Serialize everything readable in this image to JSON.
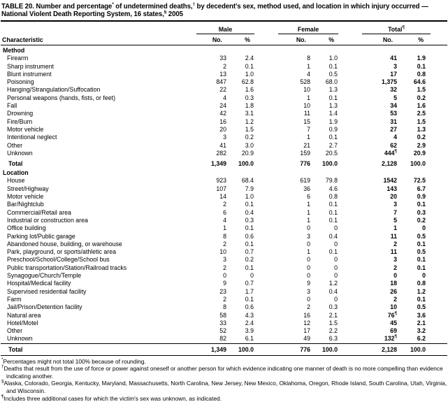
{
  "title_parts": [
    {
      "text": "TABLE 20. Number and percentage"
    },
    {
      "sup": "*"
    },
    {
      "text": " of undetermined deaths,"
    },
    {
      "sup": "†"
    },
    {
      "text": " by decedent's sex, method used, and location in which injury occurred — National Violent Death Reporting System, 16 states,"
    },
    {
      "sup": "§"
    },
    {
      "text": " 2005"
    }
  ],
  "header": {
    "characteristic": "Characteristic",
    "groups": [
      {
        "label": "Male",
        "sup": ""
      },
      {
        "label": "Female",
        "sup": ""
      },
      {
        "label": "Total",
        "sup": "¶"
      }
    ],
    "sub": {
      "no": "No.",
      "pct": "%"
    }
  },
  "sections": [
    {
      "name": "Method",
      "rows": [
        [
          "Firearm",
          "33",
          "2.4",
          "8",
          "1.0",
          "41",
          "1.9"
        ],
        [
          "Sharp instrument",
          "2",
          "0.1",
          "1",
          "0.1",
          "3",
          "0.1"
        ],
        [
          "Blunt instrument",
          "13",
          "1.0",
          "4",
          "0.5",
          "17",
          "0.8"
        ],
        [
          "Poisoning",
          "847",
          "62.8",
          "528",
          "68.0",
          "1,375",
          "64.6"
        ],
        [
          "Hanging/Strangulation/Suffocation",
          "22",
          "1.6",
          "10",
          "1.3",
          "32",
          "1.5"
        ],
        [
          "Personal weapons (hands, fists, or feet)",
          "4",
          "0.3",
          "1",
          "0.1",
          "5",
          "0.2"
        ],
        [
          "Fall",
          "24",
          "1.8",
          "10",
          "1.3",
          "34",
          "1.6"
        ],
        [
          "Drowning",
          "42",
          "3.1",
          "11",
          "1.4",
          "53",
          "2.5"
        ],
        [
          "Fire/Burn",
          "16",
          "1.2",
          "15",
          "1.9",
          "31",
          "1.5"
        ],
        [
          "Motor vehicle",
          "20",
          "1.5",
          "7",
          "0.9",
          "27",
          "1.3"
        ],
        [
          "Intentional neglect",
          "3",
          "0.2",
          "1",
          "0.1",
          "4",
          "0.2"
        ],
        [
          "Other",
          "41",
          "3.0",
          "21",
          "2.7",
          "62",
          "2.9"
        ],
        [
          "Unknown",
          "282",
          "20.9",
          "159",
          "20.5",
          "444¶",
          "20.9"
        ]
      ],
      "total": [
        "Total",
        "1,349",
        "100.0",
        "776",
        "100.0",
        "2,128",
        "100.0"
      ]
    },
    {
      "name": "Location",
      "rows": [
        [
          "House",
          "923",
          "68.4",
          "619",
          "79.8",
          "1542",
          "72.5"
        ],
        [
          "Street/Highway",
          "107",
          "7.9",
          "36",
          "4.6",
          "143",
          "6.7"
        ],
        [
          "Motor vehicle",
          "14",
          "1.0",
          "6",
          "0.8",
          "20",
          "0.9"
        ],
        [
          "Bar/Nightclub",
          "2",
          "0.1",
          "1",
          "0.1",
          "3",
          "0.1"
        ],
        [
          "Commercial/Retail area",
          "6",
          "0.4",
          "1",
          "0.1",
          "7",
          "0.3"
        ],
        [
          "Industrial or construction area",
          "4",
          "0.3",
          "1",
          "0.1",
          "5",
          "0.2"
        ],
        [
          "Office building",
          "1",
          "0.1",
          "0",
          "0",
          "1",
          "0"
        ],
        [
          "Parking lot/Public garage",
          "8",
          "0.6",
          "3",
          "0.4",
          "11",
          "0.5"
        ],
        [
          "Abandoned house, building, or warehouse",
          "2",
          "0.1",
          "0",
          "0",
          "2",
          "0.1"
        ],
        [
          "Park, playground, or sports/athletic area",
          "10",
          "0.7",
          "1",
          "0.1",
          "11",
          "0.5"
        ],
        [
          "Preschool/School/College/School bus",
          "3",
          "0.2",
          "0",
          "0",
          "3",
          "0.1"
        ],
        [
          "Public transportation/Station/Railroad tracks",
          "2",
          "0.1",
          "0",
          "0",
          "2",
          "0.1"
        ],
        [
          "Synagogue/Church/Temple",
          "0",
          "0",
          "0",
          "0",
          "0",
          "0"
        ],
        [
          "Hospital/Medical facility",
          "9",
          "0.7",
          "9",
          "1.2",
          "18",
          "0.8"
        ],
        [
          "Supervised residential facility",
          "23",
          "1.7",
          "3",
          "0.4",
          "26",
          "1.2"
        ],
        [
          "Farm",
          "2",
          "0.1",
          "0",
          "0",
          "2",
          "0.1"
        ],
        [
          "Jail/Prison/Detention facility",
          "8",
          "0.6",
          "2",
          "0.3",
          "10",
          "0.5"
        ],
        [
          "Natural area",
          "58",
          "4.3",
          "16",
          "2.1",
          "76¶",
          "3.6"
        ],
        [
          "Hotel/Motel",
          "33",
          "2.4",
          "12",
          "1.5",
          "45",
          "2.1"
        ],
        [
          "Other",
          "52",
          "3.9",
          "17",
          "2.2",
          "69",
          "3.2"
        ],
        [
          "Unknown",
          "82",
          "6.1",
          "49",
          "6.3",
          "132¶",
          "6.2"
        ]
      ],
      "total": [
        "Total",
        "1,349",
        "100.0",
        "776",
        "100.0",
        "2,128",
        "100.0"
      ]
    }
  ],
  "footnotes": [
    {
      "symbol": "*",
      "text": "Percentages might not total 100% because of rounding."
    },
    {
      "symbol": "†",
      "text": "Deaths that result from the use of force or power against oneself or another person for which evidence indicating one manner of death is no more compelling than evidence indicating another."
    },
    {
      "symbol": "§",
      "text": "Alaska, Colorado, Georgia, Kentucky, Maryland, Massachusetts, North Carolina, New Jersey, New Mexico, Oklahoma, Oregon, Rhode Island, South Carolina, Utah, Virginia, and Wisconsin."
    },
    {
      "symbol": "¶",
      "text": "Includes three additional cases for which the victim's sex was unknown, as indicated."
    }
  ],
  "colors": {
    "text": "#000000",
    "background": "#ffffff"
  }
}
